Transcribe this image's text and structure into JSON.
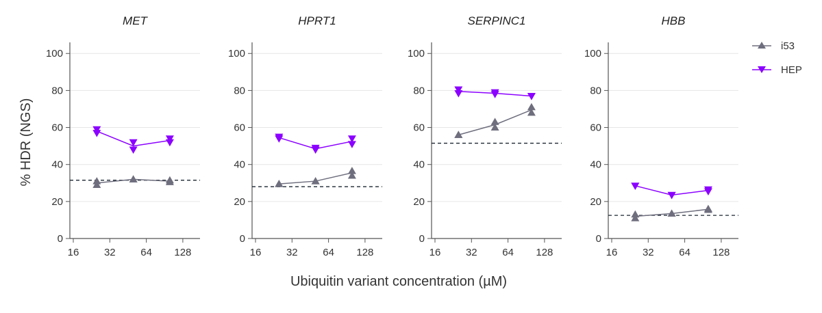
{
  "chart_data": [
    {
      "type": "line",
      "title": "MET",
      "x": [
        25,
        50,
        100
      ],
      "series": [
        {
          "name": "i53",
          "color": "#6e6e7e",
          "marker": "triangle-up",
          "replicates": [
            [
              31,
              29
            ],
            [
              32,
              32
            ],
            [
              31.5,
              30.5
            ]
          ],
          "mean": [
            30,
            32,
            31
          ]
        },
        {
          "name": "HEP",
          "color": "#8b00ff",
          "marker": "triangle-down",
          "replicates": [
            [
              59,
              57
            ],
            [
              52,
              48
            ],
            [
              54,
              52
            ]
          ],
          "mean": [
            58,
            50,
            53
          ]
        }
      ],
      "baseline": 31.5
    },
    {
      "type": "line",
      "title": "HPRT1",
      "x": [
        25,
        50,
        100
      ],
      "series": [
        {
          "name": "i53",
          "color": "#6e6e7e",
          "marker": "triangle-up",
          "replicates": [
            [
              29.5,
              29.5
            ],
            [
              31,
              31
            ],
            [
              36.5,
              34
            ]
          ],
          "mean": [
            29.5,
            31,
            35.5
          ]
        },
        {
          "name": "HEP",
          "color": "#8b00ff",
          "marker": "triangle-down",
          "replicates": [
            [
              55,
              54
            ],
            [
              49,
              48
            ],
            [
              54,
              51
            ]
          ],
          "mean": [
            54.5,
            48.5,
            52.5
          ]
        }
      ],
      "baseline": 28
    },
    {
      "type": "line",
      "title": "SERPINC1",
      "x": [
        25,
        50,
        100
      ],
      "series": [
        {
          "name": "i53",
          "color": "#6e6e7e",
          "marker": "triangle-up",
          "replicates": [
            [
              56,
              56
            ],
            [
              63,
              60
            ],
            [
              71,
              68
            ]
          ],
          "mean": [
            56,
            61.5,
            69.5
          ]
        },
        {
          "name": "HEP",
          "color": "#8b00ff",
          "marker": "triangle-down",
          "replicates": [
            [
              80.5,
              78.5
            ],
            [
              79,
              78
            ],
            [
              77,
              77
            ]
          ],
          "mean": [
            79.5,
            78.5,
            77
          ]
        }
      ],
      "baseline": 51.5
    },
    {
      "type": "line",
      "title": "HBB",
      "x": [
        25,
        50,
        100
      ],
      "series": [
        {
          "name": "i53",
          "color": "#6e6e7e",
          "marker": "triangle-up",
          "replicates": [
            [
              13,
              11
            ],
            [
              13.5,
              13.5
            ],
            [
              16,
              15.5
            ]
          ],
          "mean": [
            12,
            13.5,
            15.8
          ]
        },
        {
          "name": "HEP",
          "color": "#8b00ff",
          "marker": "triangle-down",
          "replicates": [
            [
              28.5,
              28.5
            ],
            [
              23.5,
              23.5
            ],
            [
              26.5,
              25.5
            ]
          ],
          "mean": [
            28.5,
            23.5,
            26
          ]
        }
      ],
      "baseline": 12.5
    }
  ],
  "axes": {
    "xlabel": "Ubiquitin variant concentration (µM)",
    "ylabel": "% HDR (NGS)",
    "xscale": "log2",
    "xticks": [
      "16",
      "32",
      "64",
      "128"
    ],
    "yticks": [
      "0",
      "20",
      "40",
      "60",
      "80",
      "100"
    ],
    "ylim": [
      0,
      106
    ],
    "grid": "horizontal"
  },
  "legend": {
    "placement": "right",
    "items": [
      {
        "label": "i53"
      },
      {
        "label": "HEP"
      }
    ]
  }
}
